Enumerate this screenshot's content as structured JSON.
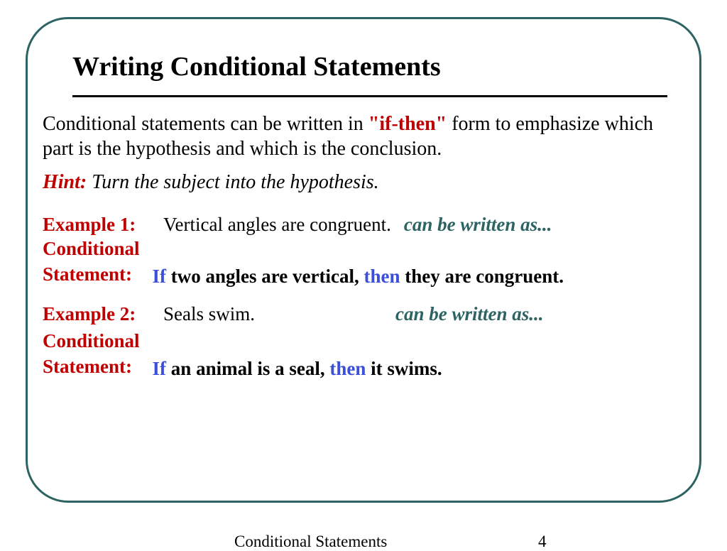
{
  "title": "Writing Conditional Statements",
  "intro": {
    "pre": "Conditional statements can be written in ",
    "if_then": "\"if-then\"",
    "post": " form to emphasize which part is the hypothesis and which is the conclusion."
  },
  "hint": {
    "label": "Hint:",
    "text": "  Turn the subject into the hypothesis."
  },
  "example1": {
    "label": "Example 1:",
    "statement": "Vertical angles are congruent.",
    "written_as": "can be written as...",
    "cond_label_1": "Conditional",
    "cond_label_2": "Statement:",
    "if": "If",
    "mid1": " two angles are vertical, ",
    "then": "then",
    "mid2": " they are congruent."
  },
  "example2": {
    "label": "Example 2:",
    "statement": "Seals swim.",
    "written_as": "can be written as...",
    "cond_label_1": "Conditional",
    "cond_label_2": "Statement:",
    "if": "If",
    "mid1": " an animal is a seal, ",
    "then": "then",
    "mid2": " it swims."
  },
  "footer": {
    "title": "Conditional Statements",
    "page": "4"
  },
  "colors": {
    "frame_border": "#2d6362",
    "red": "#c00000",
    "teal": "#2d6362",
    "blue": "#3b4fd8",
    "black": "#000000",
    "background": "#ffffff"
  }
}
